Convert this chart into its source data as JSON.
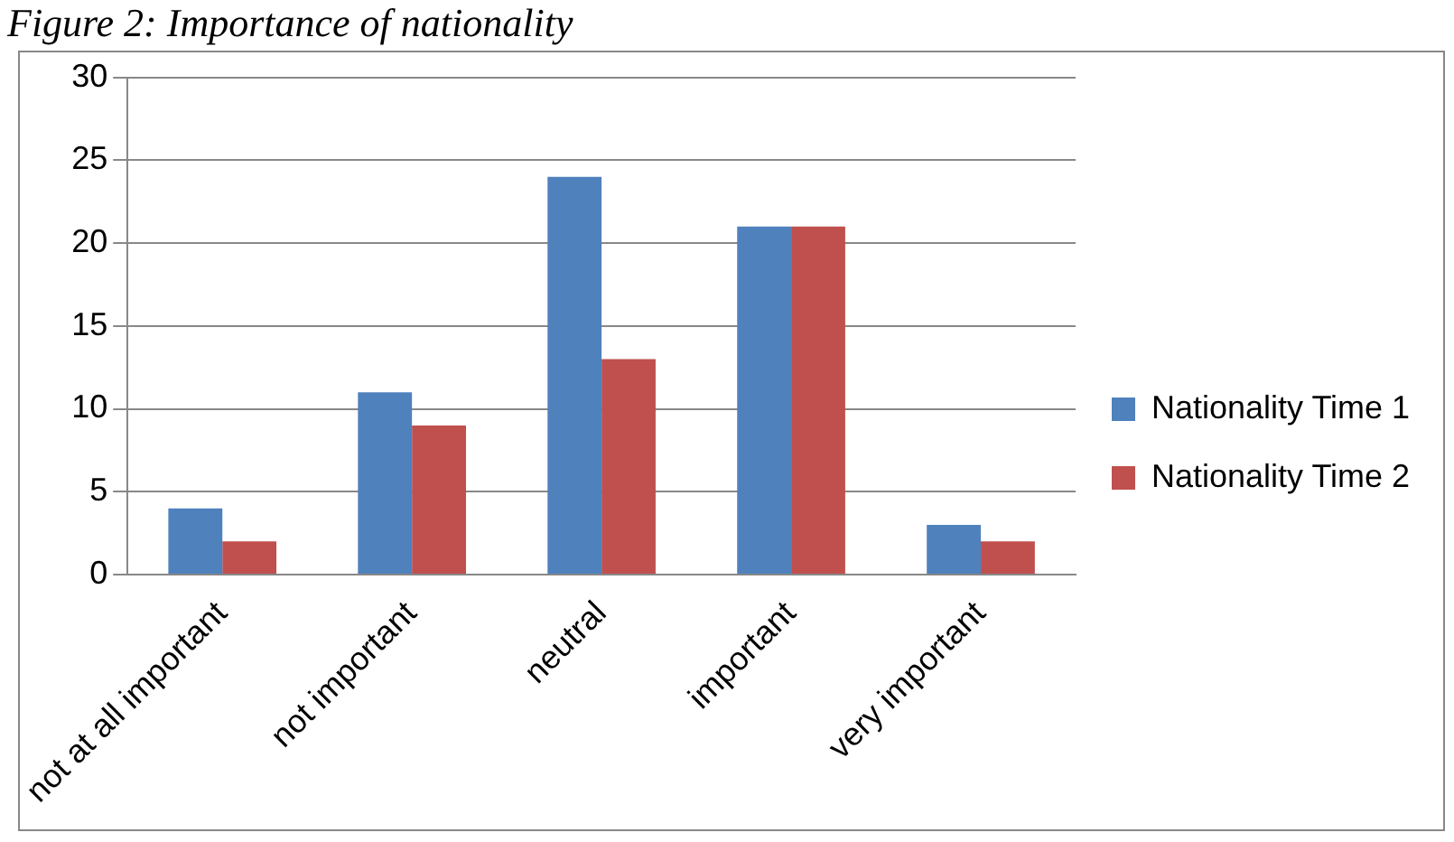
{
  "chart_data": {
    "type": "bar",
    "title": "Figure 2: Importance of nationality",
    "categories": [
      "not at all important",
      "not important",
      "neutral",
      "important",
      "very important"
    ],
    "series": [
      {
        "name": "Nationality Time 1",
        "color": "#4f81bd",
        "values": [
          4,
          11,
          24,
          21,
          3
        ]
      },
      {
        "name": "Nationality Time 2",
        "color": "#c0504d",
        "values": [
          2,
          9,
          13,
          21,
          2
        ]
      }
    ],
    "ylim": [
      0,
      30
    ],
    "yticks": [
      0,
      5,
      10,
      15,
      20,
      25,
      30
    ],
    "grid": "y",
    "legend": "right"
  }
}
